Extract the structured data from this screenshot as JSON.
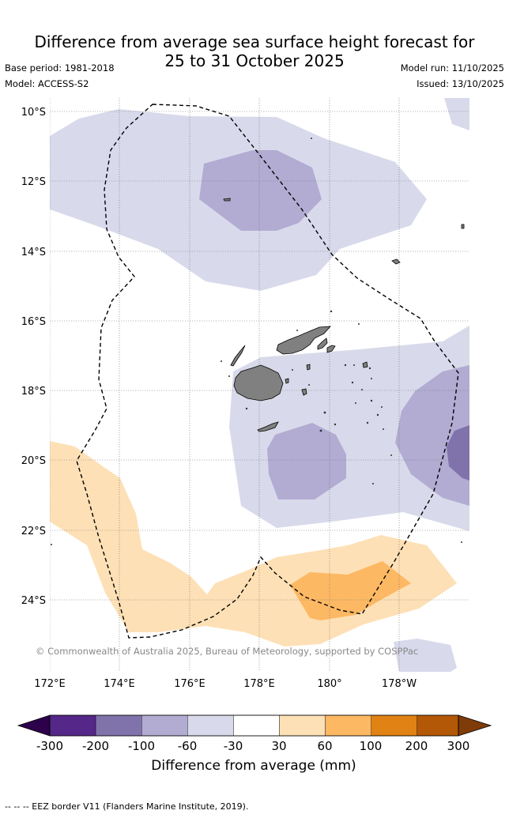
{
  "title_line1": "Difference from average sea surface height forecast for",
  "title_line2": "25 to 31 October 2025",
  "base_period": "Base period: 1981-2018",
  "model": "Model: ACCESS-S2",
  "model_run": "Model run: 11/10/2025",
  "issued": "Issued: 13/10/2025",
  "copyright": "© Commonwealth of Australia 2025, Bureau of Meteorology, supported by COSPPac",
  "map": {
    "lat_labels": [
      "10°S",
      "12°S",
      "14°S",
      "16°S",
      "18°S",
      "20°S",
      "22°S",
      "24°S"
    ],
    "lon_labels": [
      "172°E",
      "174°E",
      "176°E",
      "178°E",
      "180°",
      "178°W"
    ]
  },
  "colorbar": {
    "label": "Difference from average (mm)",
    "ticks": [
      "-300",
      "-200",
      "-100",
      "-60",
      "-30",
      "30",
      "60",
      "100",
      "200",
      "300"
    ],
    "colors": [
      "#2d004b",
      "#542788",
      "#8073ac",
      "#b2abd2",
      "#d8daeb",
      "#ffffff",
      "#fee0b6",
      "#fdb863",
      "#e08214",
      "#b35806",
      "#7f3b08"
    ]
  },
  "legend_footer": "--  --  -- EEZ border V11 (Flanders Marine Institute, 2019)."
}
